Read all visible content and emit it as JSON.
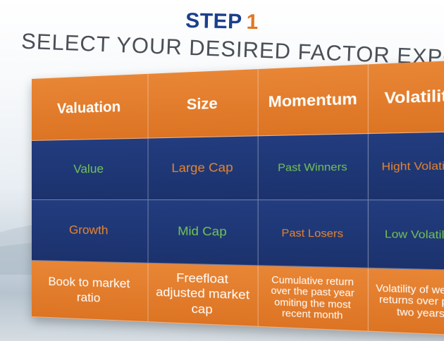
{
  "step": {
    "label": "STEP",
    "number": "1"
  },
  "subtitle": "SELECT YOUR DESIRED FACTOR EXPOSURE(S)",
  "colors": {
    "title_blue": "#1b3f8c",
    "accent_orange": "#e07620",
    "cell_orange": "#e07a28",
    "cell_navy": "#1f3775",
    "text_green": "#73c455"
  },
  "table": {
    "headers": [
      "Valuation",
      "Size",
      "Momentum",
      "Volatility"
    ],
    "rows": [
      [
        "Value",
        "Large Cap",
        "Past Winners",
        "Hight Volatility"
      ],
      [
        "Growth",
        "Mid Cap",
        "Past Losers",
        "Low Volatility"
      ],
      [
        "Book to market ratio",
        "Freefloat adjusted market cap",
        "Cumulative return over the past year omiting the most recent month",
        "Volatility of weekly returns over past two years"
      ]
    ]
  }
}
